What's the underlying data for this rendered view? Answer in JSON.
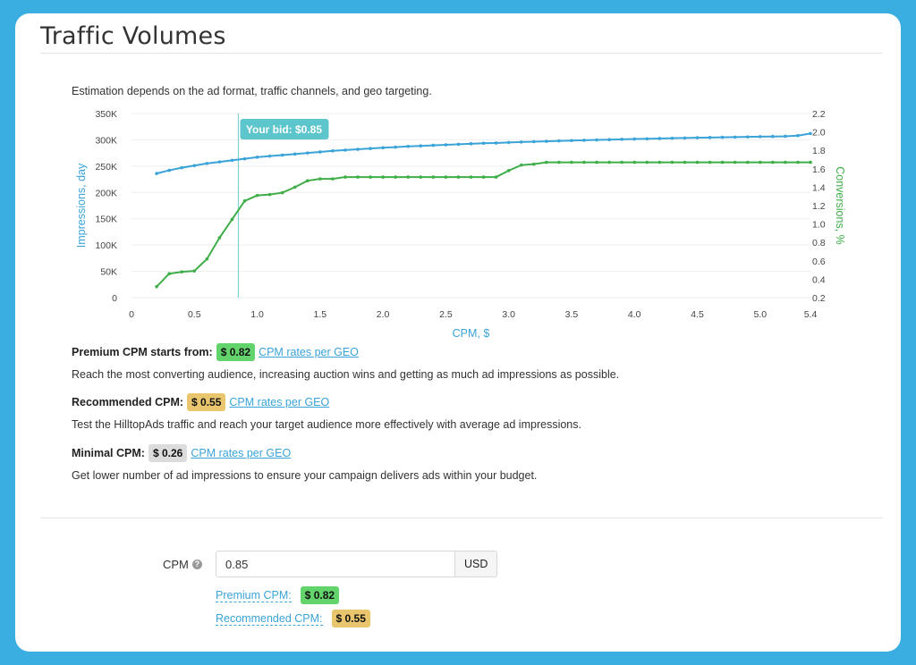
{
  "page_title": "Traffic Volumes",
  "description": "Estimation depends on the ad format, traffic channels, and geo targeting.",
  "colors": {
    "background": "#3aaee0",
    "impressions": "#3aa3d8",
    "conversions": "#3fae49",
    "bid_tag": "#5cc6cc"
  },
  "chart_data": {
    "type": "line",
    "xlabel": "CPM, $",
    "ylabel_left": "Impressions, day",
    "ylabel_right": "Conversions, %",
    "xlim": [
      0,
      5.4
    ],
    "ylim_left": [
      0,
      350000
    ],
    "ylim_right": [
      0.2,
      2.2
    ],
    "x_ticks": [
      "0",
      "0.5",
      "1.0",
      "1.5",
      "2.0",
      "2.5",
      "3.0",
      "3.5",
      "4.0",
      "4.5",
      "5.0",
      "5.4"
    ],
    "y_ticks_left": [
      "0",
      "50K",
      "100K",
      "150K",
      "200K",
      "250K",
      "300K",
      "350K"
    ],
    "y_ticks_right": [
      "0.2",
      "0.4",
      "0.6",
      "0.8",
      "1.0",
      "1.2",
      "1.4",
      "1.6",
      "1.8",
      "2.0",
      "2.2"
    ],
    "bid_marker": {
      "x": 0.85,
      "label": "Your bid: $0.85"
    },
    "series": [
      {
        "name": "Impressions, day",
        "axis": "left",
        "x": [
          0.2,
          0.3,
          0.4,
          0.5,
          0.6,
          0.7,
          0.8,
          0.9,
          1.0,
          1.1,
          1.2,
          1.3,
          1.4,
          1.5,
          1.6,
          1.7,
          1.8,
          1.9,
          2.0,
          2.1,
          2.2,
          2.3,
          2.4,
          2.5,
          2.6,
          2.7,
          2.8,
          2.9,
          3.0,
          3.1,
          3.2,
          3.3,
          3.4,
          3.5,
          3.6,
          3.7,
          3.8,
          3.9,
          4.0,
          4.1,
          4.2,
          4.3,
          4.4,
          4.5,
          4.6,
          4.7,
          4.8,
          4.9,
          5.0,
          5.1,
          5.2,
          5.3,
          5.4
        ],
        "values": [
          236000,
          242000,
          247000,
          251000,
          255000,
          258000,
          261000,
          264000,
          267000,
          269000,
          271000,
          273000,
          275000,
          277000,
          279000,
          280500,
          282000,
          283500,
          285000,
          286000,
          287500,
          288500,
          289500,
          290500,
          291500,
          292500,
          293500,
          294000,
          295000,
          295800,
          296500,
          297200,
          298000,
          298600,
          299200,
          299800,
          300400,
          301000,
          301500,
          302000,
          302500,
          303000,
          303500,
          304000,
          304400,
          304800,
          305200,
          305600,
          306000,
          306300,
          306700,
          308000,
          312000
        ]
      },
      {
        "name": "Conversions, %",
        "axis": "right",
        "x": [
          0.2,
          0.3,
          0.4,
          0.5,
          0.6,
          0.7,
          0.8,
          0.9,
          1.0,
          1.1,
          1.2,
          1.3,
          1.4,
          1.5,
          1.6,
          1.7,
          1.8,
          1.9,
          2.0,
          2.1,
          2.2,
          2.3,
          2.4,
          2.5,
          2.6,
          2.7,
          2.8,
          2.9,
          3.0,
          3.1,
          3.2,
          3.3,
          3.4,
          3.5,
          3.6,
          3.7,
          3.8,
          3.9,
          4.0,
          4.1,
          4.2,
          4.3,
          4.4,
          4.5,
          4.6,
          4.7,
          4.8,
          4.9,
          5.0,
          5.1,
          5.2,
          5.3,
          5.4
        ],
        "values": [
          0.32,
          0.46,
          0.48,
          0.49,
          0.62,
          0.85,
          1.05,
          1.25,
          1.31,
          1.32,
          1.34,
          1.4,
          1.47,
          1.49,
          1.49,
          1.51,
          1.51,
          1.51,
          1.51,
          1.51,
          1.51,
          1.51,
          1.51,
          1.51,
          1.51,
          1.51,
          1.51,
          1.51,
          1.58,
          1.64,
          1.65,
          1.67,
          1.67,
          1.67,
          1.67,
          1.67,
          1.67,
          1.67,
          1.67,
          1.67,
          1.67,
          1.67,
          1.67,
          1.67,
          1.67,
          1.67,
          1.67,
          1.67,
          1.67,
          1.67,
          1.67,
          1.67,
          1.67
        ]
      }
    ]
  },
  "cpm_tiers": [
    {
      "title": "Premium CPM starts from:",
      "value": "$ 0.82",
      "color": "green",
      "link": "CPM rates per GEO",
      "text": "Reach the most converting audience, increasing auction wins and getting as much ad impressions as possible."
    },
    {
      "title": "Recommended CPM:",
      "value": "$ 0.55",
      "color": "yellow",
      "link": "CPM rates per GEO",
      "text": "Test the HilltopAds traffic and reach your target audience more effectively with average ad impressions."
    },
    {
      "title": "Minimal CPM:",
      "value": "$ 0.26",
      "color": "gray",
      "link": "CPM rates per GEO",
      "text": "Get lower number of ad impressions to ensure your campaign delivers ads within your budget."
    }
  ],
  "form": {
    "cpm_label": "CPM",
    "help_icon": "?",
    "cpm_value": "0.85",
    "currency": "USD",
    "premium_label": "Premium CPM:",
    "premium_value": "$ 0.82",
    "recommended_label": "Recommended CPM:",
    "recommended_value": "$ 0.55"
  }
}
